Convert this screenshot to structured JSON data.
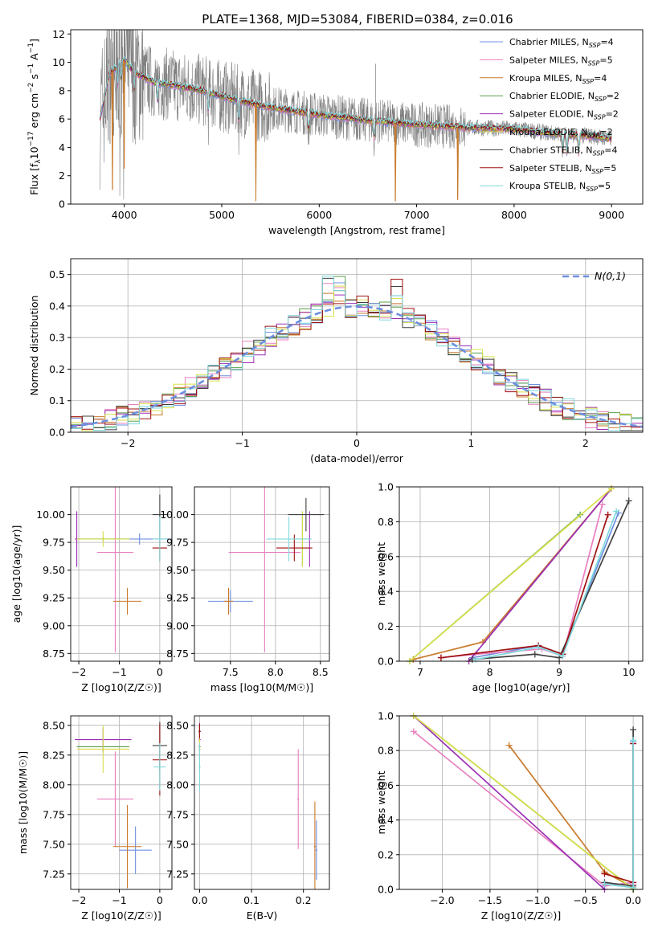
{
  "figure_title": "PLATE=1368, MJD=53084, FIBERID=0384, z=0.016",
  "series_names": [
    "Chabrier MILES, N_{SSP}=4",
    "Salpeter MILES, N_{SSP}=5",
    "Kroupa MILES, N_{SSP}=4",
    "Chabrier ELODIE, N_{SSP}=2",
    "Salpeter ELODIE, N_{SSP}=2",
    "Kroupa ELODIE, N_{SSP}=2",
    "Chabrier STELIB, N_{SSP}=4",
    "Salpeter STELIB, N_{SSP}=5",
    "Kroupa STELIB, N_{SSP}=5"
  ],
  "colors": [
    "#6d8fe0",
    "#e87fbf",
    "#c97a2a",
    "#5aa04a",
    "#9b2fb5",
    "#d8e04a",
    "#3f3f3f",
    "#a01010",
    "#7fd8dc"
  ],
  "chart_data": [
    {
      "type": "line",
      "name": "spectrum",
      "xlabel": "wavelength [Angstrom, rest frame]",
      "ylabel": "Flux [f_λ 10^{-17} erg cm^{-2} s^{-1} A^{-1}]",
      "xlim": [
        3450,
        9320
      ],
      "ylim": [
        0,
        12.3
      ],
      "xticks": [
        4000,
        5000,
        6000,
        7000,
        8000,
        9000
      ],
      "yticks": [
        0,
        2,
        4,
        6,
        8,
        10,
        12
      ],
      "legend": [
        {
          "label": "Chabrier MILES, N",
          "sub": "SSP",
          "suffix": "=4"
        },
        {
          "label": "Salpeter MILES, N",
          "sub": "SSP",
          "suffix": "=5"
        },
        {
          "label": "Kroupa MILES, N",
          "sub": "SSP",
          "suffix": "=4"
        },
        {
          "label": "Chabrier ELODIE, N",
          "sub": "SSP",
          "suffix": "=2"
        },
        {
          "label": "Salpeter ELODIE, N",
          "sub": "SSP",
          "suffix": "=2"
        },
        {
          "label": "Kroupa ELODIE, N",
          "sub": "SSP",
          "suffix": "=2"
        },
        {
          "label": "Chabrier STELIB, N",
          "sub": "SSP",
          "suffix": "=4"
        },
        {
          "label": "Salpeter STELIB, N",
          "sub": "SSP",
          "suffix": "=5"
        },
        {
          "label": "Kroupa STELIB, N",
          "sub": "SSP",
          "suffix": "=5"
        }
      ],
      "continuum": [
        [
          3750,
          6.0
        ],
        [
          3850,
          9.2
        ],
        [
          4000,
          10.2
        ],
        [
          4100,
          9.3
        ],
        [
          4300,
          8.6
        ],
        [
          4500,
          8.4
        ],
        [
          4800,
          8.0
        ],
        [
          5000,
          7.6
        ],
        [
          5300,
          7.1
        ],
        [
          5600,
          6.7
        ],
        [
          6000,
          6.3
        ],
        [
          6500,
          5.9
        ],
        [
          7000,
          5.6
        ],
        [
          7500,
          5.4
        ],
        [
          8000,
          5.3
        ],
        [
          8500,
          4.9
        ],
        [
          8800,
          4.8
        ],
        [
          9000,
          4.6
        ]
      ],
      "dips": [
        [
          5350,
          0.2
        ],
        [
          6780,
          0.2
        ],
        [
          7420,
          0.3
        ],
        [
          3880,
          1.0
        ],
        [
          4000,
          2.5
        ]
      ]
    },
    {
      "type": "bar",
      "name": "residual_histogram",
      "xlabel": "(data-model)/error",
      "ylabel": "Normed distribution",
      "xlim": [
        -2.5,
        2.5
      ],
      "ylim": [
        0,
        0.55
      ],
      "xticks": [
        -2,
        -1,
        0,
        1,
        2
      ],
      "yticks": [
        0.0,
        0.1,
        0.2,
        0.3,
        0.4,
        0.5
      ],
      "legend_label": "N(0,1)",
      "bin_width": 0.1
    },
    {
      "type": "scatter",
      "name": "age_vs_Z",
      "xlabel": "Z [log10(Z/Z☉)]",
      "ylabel": "age [log10(age/yr)]",
      "xlim": [
        -2.2,
        0.3
      ],
      "ylim": [
        8.68,
        10.25
      ],
      "xticks": [
        -2,
        -1,
        0
      ],
      "yticks": [
        8.75,
        9.0,
        9.25,
        9.5,
        9.75,
        10.0
      ],
      "points": [
        {
          "x": -0.5,
          "y": 9.78,
          "xerr": 1.5,
          "yerr": 0.05,
          "c": 0
        },
        {
          "x": -1.1,
          "y": 9.66,
          "xerr": 0.45,
          "yerr": 0.9,
          "c": 1
        },
        {
          "x": -0.8,
          "y": 9.22,
          "xerr": 0.35,
          "yerr": 0.12,
          "c": 2
        },
        {
          "x": -1.4,
          "y": 9.78,
          "xerr": 0.65,
          "yerr": 0.02,
          "c": 3
        },
        {
          "x": -2.05,
          "y": 9.78,
          "xerr": 0.05,
          "yerr": 0.25,
          "c": 4
        },
        {
          "x": -1.4,
          "y": 9.78,
          "xerr": 0.65,
          "yerr": 0.07,
          "c": 5
        },
        {
          "x": 0.0,
          "y": 10.0,
          "xerr": 0.18,
          "yerr": 0.18,
          "c": 6
        },
        {
          "x": 0.0,
          "y": 9.7,
          "xerr": 0.18,
          "yerr": 0.12,
          "c": 7
        },
        {
          "x": 0.0,
          "y": 9.78,
          "xerr": 0.18,
          "yerr": 0.2,
          "c": 8
        }
      ]
    },
    {
      "type": "scatter",
      "name": "age_vs_mass",
      "xlabel": "mass [log10(M/M☉)]",
      "ylabel": "",
      "xlim": [
        7.1,
        8.6
      ],
      "ylim": [
        8.68,
        10.25
      ],
      "xticks": [
        7.5,
        8.0,
        8.5
      ],
      "yticks": [
        8.75,
        9.0,
        9.25,
        9.5,
        9.75,
        10.0
      ],
      "points": [
        {
          "x": 7.5,
          "y": 9.22,
          "xerr": 0.25,
          "yerr": 0.1,
          "c": 0
        },
        {
          "x": 7.88,
          "y": 9.66,
          "xerr": 0.4,
          "yerr": 0.9,
          "c": 1
        },
        {
          "x": 7.48,
          "y": 9.22,
          "xerr": 0.05,
          "yerr": 0.12,
          "c": 2
        },
        {
          "x": 8.3,
          "y": 9.78,
          "xerr": 0.05,
          "yerr": 0.25,
          "c": 3
        },
        {
          "x": 8.38,
          "y": 9.78,
          "xerr": 0.02,
          "yerr": 0.25,
          "c": 4
        },
        {
          "x": 8.3,
          "y": 9.78,
          "xerr": 0.05,
          "yerr": 0.25,
          "c": 5
        },
        {
          "x": 8.34,
          "y": 10.0,
          "xerr": 0.2,
          "yerr": 0.15,
          "c": 6
        },
        {
          "x": 8.21,
          "y": 9.7,
          "xerr": 0.2,
          "yerr": 0.12,
          "c": 7
        },
        {
          "x": 8.15,
          "y": 9.78,
          "xerr": 0.25,
          "yerr": 0.2,
          "c": 8
        }
      ]
    },
    {
      "type": "line",
      "name": "massweight_vs_age",
      "xlabel": "age [log10(age/yr)]",
      "ylabel": "mass weight",
      "xlim": [
        6.7,
        10.2
      ],
      "ylim": [
        0,
        1.0
      ],
      "xticks": [
        7,
        8,
        9,
        10
      ],
      "yticks": [
        0.0,
        0.2,
        0.4,
        0.6,
        0.8,
        1.0
      ],
      "series": [
        {
          "c": 0,
          "x": [
            7.75,
            8.7,
            9.05,
            9.85
          ],
          "y": [
            0.02,
            0.09,
            0.04,
            0.85
          ]
        },
        {
          "c": 1,
          "x": [
            7.3,
            7.8,
            8.75,
            9.05,
            9.62
          ],
          "y": [
            0.02,
            0.04,
            0.07,
            0.03,
            0.9
          ]
        },
        {
          "c": 2,
          "x": [
            6.9,
            7.9,
            9.75
          ],
          "y": [
            0.01,
            0.11,
            0.99
          ]
        },
        {
          "c": 3,
          "x": [
            6.85,
            9.3
          ],
          "y": [
            0.0,
            0.84
          ]
        },
        {
          "c": 4,
          "x": [
            7.7,
            9.75
          ],
          "y": [
            0.0,
            0.99
          ]
        },
        {
          "c": 5,
          "x": [
            6.85,
            9.75
          ],
          "y": [
            0.0,
            0.99
          ]
        },
        {
          "c": 6,
          "x": [
            7.75,
            8.65,
            9.0,
            10.0
          ],
          "y": [
            0.01,
            0.04,
            0.02,
            0.92
          ]
        },
        {
          "c": 7,
          "x": [
            7.3,
            8.7,
            9.05,
            9.7
          ],
          "y": [
            0.02,
            0.09,
            0.04,
            0.84
          ]
        },
        {
          "c": 8,
          "x": [
            7.8,
            8.7,
            9.05,
            9.82
          ],
          "y": [
            0.01,
            0.08,
            0.03,
            0.86
          ]
        }
      ]
    },
    {
      "type": "scatter",
      "name": "mass_vs_Z",
      "xlabel": "Z [log10(Z/Z☉)]",
      "ylabel": "mass [log10(M/M☉)]",
      "xlim": [
        -2.2,
        0.3
      ],
      "ylim": [
        7.12,
        8.58
      ],
      "xticks": [
        -2,
        -1,
        0
      ],
      "yticks": [
        7.25,
        7.5,
        7.75,
        8.0,
        8.25,
        8.5
      ],
      "points": [
        {
          "x": -0.6,
          "y": 7.45,
          "xerr": 0.4,
          "yerr": 0.2,
          "c": 0
        },
        {
          "x": -1.1,
          "y": 7.88,
          "xerr": 0.45,
          "yerr": 0.4,
          "c": 1
        },
        {
          "x": -0.8,
          "y": 7.48,
          "xerr": 0.35,
          "yerr": 0.35,
          "c": 2
        },
        {
          "x": -1.4,
          "y": 8.32,
          "xerr": 0.65,
          "yerr": 0.05,
          "c": 3
        },
        {
          "x": -1.4,
          "y": 8.38,
          "xerr": 0.7,
          "yerr": 0.1,
          "c": 4
        },
        {
          "x": -1.4,
          "y": 8.3,
          "xerr": 0.65,
          "yerr": 0.2,
          "c": 5
        },
        {
          "x": 0.0,
          "y": 8.33,
          "xerr": 0.18,
          "yerr": 0.2,
          "c": 6
        },
        {
          "x": 0.0,
          "y": 8.21,
          "xerr": 0.18,
          "yerr": 0.3,
          "c": 7
        },
        {
          "x": 0.0,
          "y": 8.15,
          "xerr": 0.15,
          "yerr": 0.2,
          "c": 8
        }
      ]
    },
    {
      "type": "scatter",
      "name": "mass_vs_EBV",
      "xlabel": "E(B-V)",
      "ylabel": "",
      "xlim": [
        -0.01,
        0.25
      ],
      "ylim": [
        7.12,
        8.58
      ],
      "xticks": [
        0.0,
        0.1,
        0.2
      ],
      "yticks": [
        7.25,
        7.5,
        7.75,
        8.0,
        8.25,
        8.5
      ],
      "points": [
        {
          "x": 0.225,
          "y": 7.45,
          "xerr": 0.002,
          "yerr": 0.25,
          "c": 0
        },
        {
          "x": 0.19,
          "y": 7.88,
          "xerr": 0.002,
          "yerr": 0.42,
          "c": 1
        },
        {
          "x": 0.222,
          "y": 7.48,
          "xerr": 0.002,
          "yerr": 0.38,
          "c": 2
        },
        {
          "x": 0.0,
          "y": 8.32,
          "xerr": 0.002,
          "yerr": 0.2,
          "c": 3
        },
        {
          "x": 0.0,
          "y": 8.38,
          "xerr": 0.002,
          "yerr": 0.14,
          "c": 4
        },
        {
          "x": 0.0,
          "y": 8.3,
          "xerr": 0.002,
          "yerr": 0.2,
          "c": 5
        },
        {
          "x": 0.0,
          "y": 8.45,
          "xerr": 0.002,
          "yerr": 0.06,
          "c": 6
        },
        {
          "x": 0.0,
          "y": 8.45,
          "xerr": 0.002,
          "yerr": 0.06,
          "c": 7
        },
        {
          "x": 0.0,
          "y": 8.15,
          "xerr": 0.002,
          "yerr": 0.2,
          "c": 8
        }
      ]
    },
    {
      "type": "line",
      "name": "massweight_vs_Z",
      "xlabel": "Z [log10(Z/Z☉)]",
      "ylabel": "mass weight",
      "xlim": [
        -2.45,
        0.1
      ],
      "ylim": [
        0,
        1.0
      ],
      "xticks": [
        -2.0,
        -1.5,
        -1.0,
        -0.5,
        0.0
      ],
      "yticks": [
        0.0,
        0.2,
        0.4,
        0.6,
        0.8,
        1.0
      ],
      "series": [
        {
          "c": 0,
          "x": [
            -0.3,
            0.0,
            0.0
          ],
          "y": [
            0.02,
            0.04,
            0.85
          ]
        },
        {
          "c": 1,
          "x": [
            -2.3,
            -0.3,
            0.0,
            0.0
          ],
          "y": [
            0.91,
            0.02,
            0.04,
            0.03
          ]
        },
        {
          "c": 2,
          "x": [
            -1.3,
            -0.3,
            0.0
          ],
          "y": [
            0.83,
            0.1,
            0.01
          ]
        },
        {
          "c": 3,
          "x": [
            -2.3,
            0.0
          ],
          "y": [
            1.0,
            0.0
          ]
        },
        {
          "c": 4,
          "x": [
            -2.3,
            -0.3
          ],
          "y": [
            1.0,
            0.0
          ]
        },
        {
          "c": 5,
          "x": [
            -2.3,
            0.0
          ],
          "y": [
            1.0,
            0.0
          ]
        },
        {
          "c": 6,
          "x": [
            -0.3,
            0.0,
            0.0
          ],
          "y": [
            0.04,
            0.02,
            0.92
          ]
        },
        {
          "c": 7,
          "x": [
            -0.3,
            0.0,
            0.0
          ],
          "y": [
            0.09,
            0.04,
            0.84
          ]
        },
        {
          "c": 8,
          "x": [
            -0.3,
            0.0,
            0.0
          ],
          "y": [
            0.03,
            0.01,
            0.86
          ]
        }
      ]
    }
  ]
}
